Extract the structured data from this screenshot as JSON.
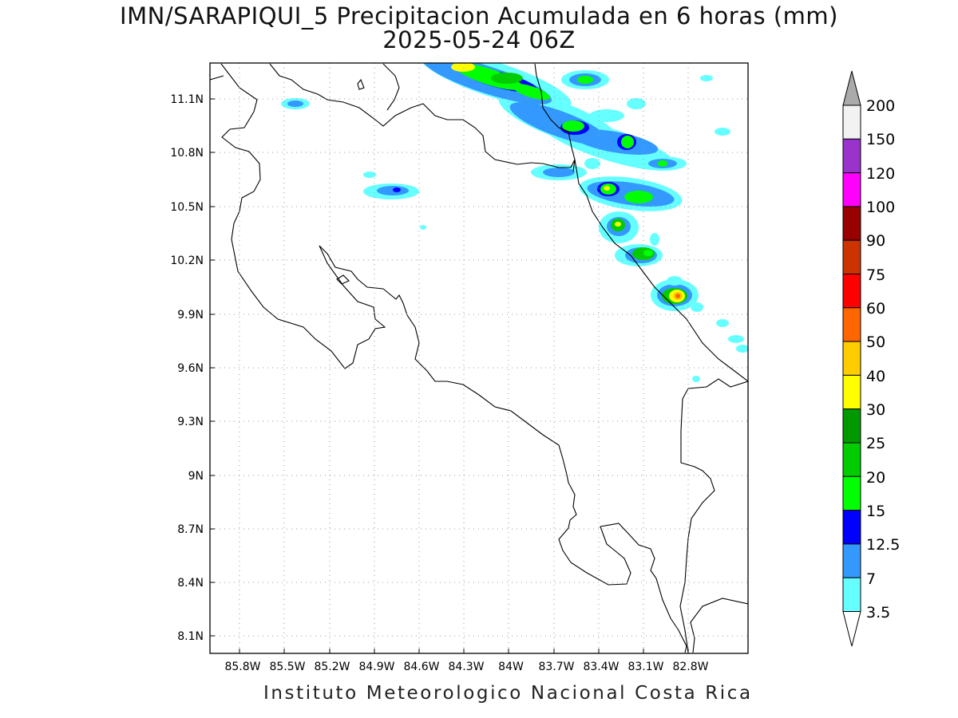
{
  "title_line1": "IMN/SARAPIQUI_5 Precipitacion Acumulada en 6 horas (mm)",
  "title_line2": "2025-05-24 06Z",
  "footer": "Instituto Meteorologico Nacional Costa Rica",
  "map": {
    "lon_labels": [
      "85.8W",
      "85.5W",
      "85.2W",
      "84.9W",
      "84.6W",
      "84.3W",
      "84W",
      "83.7W",
      "83.4W",
      "83.1W",
      "82.8W"
    ],
    "lat_labels": [
      "11.1N",
      "10.8N",
      "10.5N",
      "10.2N",
      "9.9N",
      "9.6N",
      "9.3N",
      "9N",
      "8.7N",
      "8.4N",
      "8.1N"
    ],
    "lon_range": [
      "86W",
      "83W"
    ],
    "lat_range": [
      "8N",
      "11.3N"
    ],
    "gridlines": "dotted"
  },
  "colorbar": {
    "levels": [
      "3.5",
      "7",
      "12.5",
      "15",
      "20",
      "25",
      "30",
      "40",
      "50",
      "60",
      "75",
      "90",
      "100",
      "120",
      "150",
      "200"
    ],
    "colors": [
      "#ffffff",
      "#66ffff",
      "#3399ff",
      "#0000ff",
      "#00ff00",
      "#00cc00",
      "#009900",
      "#ffff00",
      "#ffcc00",
      "#ff6600",
      "#ff0000",
      "#cc3300",
      "#990000",
      "#ff00ff",
      "#9933cc",
      "#f2f2f2",
      "#aaaaaa"
    ]
  }
}
